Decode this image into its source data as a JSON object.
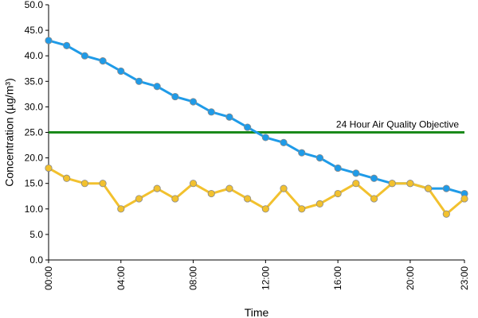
{
  "chart_data": {
    "type": "line",
    "xlabel": "Time",
    "ylabel": "Concentration (µg/m³)",
    "ylim": [
      0,
      50
    ],
    "y_ticks": [
      "0.0",
      "5.0",
      "10.0",
      "15.0",
      "20.0",
      "25.0",
      "30.0",
      "35.0",
      "40.0",
      "45.0",
      "50.0"
    ],
    "categories": [
      "00:00",
      "01:00",
      "02:00",
      "03:00",
      "04:00",
      "05:00",
      "06:00",
      "07:00",
      "08:00",
      "09:00",
      "10:00",
      "11:00",
      "12:00",
      "13:00",
      "14:00",
      "15:00",
      "16:00",
      "17:00",
      "18:00",
      "19:00",
      "20:00",
      "21:00",
      "22:00",
      "23:00"
    ],
    "x_tick_labels": [
      "00:00",
      "04:00",
      "08:00",
      "12:00",
      "16:00",
      "20:00",
      "23:00"
    ],
    "series": [
      {
        "color": "#1f9be8",
        "values": [
          43,
          42,
          40,
          39,
          37,
          35,
          34,
          32,
          31,
          29,
          28,
          26,
          24,
          23,
          21,
          20,
          18,
          17,
          16,
          15,
          15,
          14,
          14,
          13
        ]
      },
      {
        "color": "#f2c12e",
        "values": [
          18,
          16,
          15,
          15,
          10,
          12,
          14,
          12,
          15,
          13,
          14,
          12,
          10,
          14,
          10,
          11,
          13,
          15,
          12,
          15,
          15,
          14,
          9,
          12
        ]
      }
    ],
    "objective": {
      "value": 25,
      "label": "24 Hour Air Quality Objective",
      "color": "#1a8a1a"
    },
    "grid": false,
    "legend": "none"
  }
}
